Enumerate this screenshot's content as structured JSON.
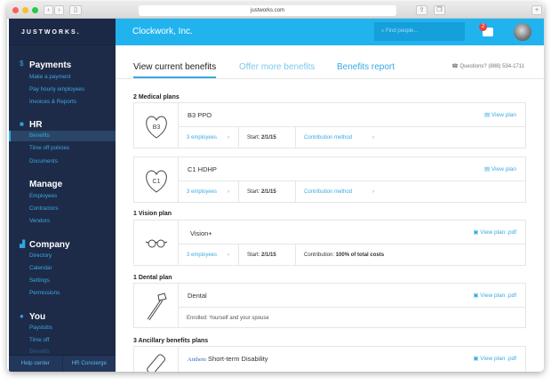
{
  "browser": {
    "url": "justworks.com"
  },
  "sidebar": {
    "logo": "JUSTWORKS.",
    "sections": [
      {
        "title": "Payments",
        "icon": "dollar-icon",
        "items": [
          "Make a payment",
          "Pay hourly employees",
          "Invoices & Reports"
        ]
      },
      {
        "title": "HR",
        "icon": "hr-icon",
        "items": [
          "Benefits",
          "Time off policies",
          "Documents"
        ]
      },
      {
        "title": "Manage",
        "items": [
          "Employees",
          "Contractors",
          "Vendors"
        ]
      },
      {
        "title": "Company",
        "icon": "chart-icon",
        "items": [
          "Directory",
          "Calendar",
          "Settings",
          "Permissions"
        ]
      },
      {
        "title": "You",
        "icon": "person-icon",
        "items": [
          "Paystubs",
          "Time off",
          "Benefits"
        ]
      }
    ],
    "footer": [
      "Help center",
      "HR Concierge"
    ]
  },
  "header": {
    "company": "Clockwork, Inc.",
    "search_placeholder": "Find people...",
    "notification_count": "2"
  },
  "tabs": [
    "View current benefits",
    "Offer more benefits",
    "Benefits report"
  ],
  "questions": "Questions? (888) 534-1711",
  "sections": {
    "medical": {
      "title": "2 Medical plans",
      "plans": [
        {
          "badge": "B3",
          "name": "B3 PPO",
          "view": "View plan",
          "employees": "3 employees",
          "start_label": "Start:",
          "start": "2/1/15",
          "contribution": "Contribution method"
        },
        {
          "badge": "C1",
          "name": "C1 HDHP",
          "view": "View plan",
          "employees": "3 employees",
          "start_label": "Start:",
          "start": "2/1/15",
          "contribution": "Contribution method"
        }
      ]
    },
    "vision": {
      "title": "1 Vision plan",
      "name": "Vision+",
      "view": "View plan .pdf",
      "employees": "3 employees",
      "start_label": "Start:",
      "start": "2/1/15",
      "contribution_label": "Contribution:",
      "contribution": "100% of total costs"
    },
    "dental": {
      "title": "1 Dental plan",
      "name": "Dental",
      "view": "View plan .pdf",
      "enrolled": "Enrolled: Yourself and your spouse"
    },
    "ancillary": {
      "title": "3 Ancillary benefits plans",
      "carrier": "Anthem",
      "name": "Short-term Disability",
      "view": "View plan .pdf"
    }
  },
  "colors": {
    "header": "#21b3ee",
    "sidebar": "#1e2b48",
    "link": "#3aa9e4"
  }
}
